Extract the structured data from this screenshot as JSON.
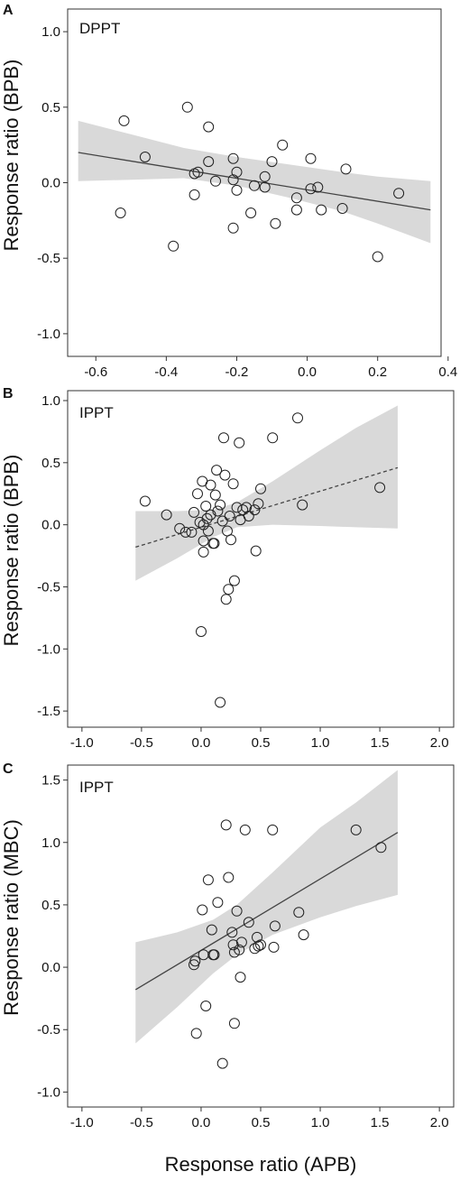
{
  "figure": {
    "xlabel": "Response ratio (APB)"
  },
  "chart_data": [
    {
      "type": "scatter",
      "panel": "A",
      "title": "DPPT",
      "ylabel": "Response ratio (BPB)",
      "xlabel": "",
      "xlim": [
        -0.68,
        0.38
      ],
      "ylim": [
        -1.15,
        1.15
      ],
      "xticks": [
        -0.6,
        -0.4,
        -0.2,
        0.0,
        0.2,
        0.4
      ],
      "xtick_labels": [
        "-0.6",
        "-0.4",
        "-0.2",
        "0.0",
        "0.2",
        "0.4"
      ],
      "yticks": [
        1.0,
        0.5,
        0.0,
        -0.5,
        -1.0
      ],
      "ytick_labels": [
        "1.0",
        "0.5",
        "0.0",
        "-0.5",
        "-1.0"
      ],
      "fit": {
        "x": [
          -0.65,
          0.35
        ],
        "y": [
          0.2,
          -0.18
        ],
        "style": "solid"
      },
      "band": {
        "x": [
          -0.65,
          -0.5,
          -0.35,
          -0.2,
          -0.05,
          0.1,
          0.2,
          0.35
        ],
        "upper": [
          0.41,
          0.32,
          0.23,
          0.17,
          0.12,
          0.07,
          0.04,
          0.01
        ],
        "lower": [
          0.01,
          0.02,
          0.03,
          -0.02,
          -0.1,
          -0.19,
          -0.27,
          -0.4
        ]
      },
      "points": [
        {
          "x": -0.52,
          "y": 0.41
        },
        {
          "x": -0.53,
          "y": -0.2
        },
        {
          "x": -0.46,
          "y": 0.17
        },
        {
          "x": -0.38,
          "y": -0.42
        },
        {
          "x": -0.34,
          "y": 0.5
        },
        {
          "x": -0.32,
          "y": 0.06
        },
        {
          "x": -0.32,
          "y": -0.08
        },
        {
          "x": -0.31,
          "y": 0.07
        },
        {
          "x": -0.28,
          "y": 0.37
        },
        {
          "x": -0.28,
          "y": 0.14
        },
        {
          "x": -0.26,
          "y": 0.01
        },
        {
          "x": -0.21,
          "y": 0.16
        },
        {
          "x": -0.21,
          "y": 0.02
        },
        {
          "x": -0.2,
          "y": 0.07
        },
        {
          "x": -0.2,
          "y": -0.05
        },
        {
          "x": -0.21,
          "y": -0.3
        },
        {
          "x": -0.16,
          "y": -0.2
        },
        {
          "x": -0.15,
          "y": -0.02
        },
        {
          "x": -0.12,
          "y": 0.04
        },
        {
          "x": -0.12,
          "y": -0.03
        },
        {
          "x": -0.1,
          "y": 0.14
        },
        {
          "x": -0.09,
          "y": -0.27
        },
        {
          "x": -0.07,
          "y": 0.25
        },
        {
          "x": -0.03,
          "y": -0.1
        },
        {
          "x": -0.03,
          "y": -0.18
        },
        {
          "x": 0.01,
          "y": 0.16
        },
        {
          "x": 0.01,
          "y": -0.04
        },
        {
          "x": 0.03,
          "y": -0.03
        },
        {
          "x": 0.04,
          "y": -0.18
        },
        {
          "x": 0.1,
          "y": -0.17
        },
        {
          "x": 0.11,
          "y": 0.09
        },
        {
          "x": 0.2,
          "y": -0.49
        },
        {
          "x": 0.26,
          "y": -0.07
        }
      ]
    },
    {
      "type": "scatter",
      "panel": "B",
      "title": "IPPT",
      "ylabel": "Response ratio (BPB)",
      "xlabel": "",
      "xlim": [
        -1.12,
        2.12
      ],
      "ylim": [
        -1.63,
        1.08
      ],
      "xticks": [
        -1.0,
        -0.5,
        0.0,
        0.5,
        1.0,
        1.5,
        2.0
      ],
      "xtick_labels": [
        "-1.0",
        "-0.5",
        "0.0",
        "0.5",
        "1.0",
        "1.5",
        "2.0"
      ],
      "yticks": [
        1.0,
        0.5,
        0.0,
        -0.5,
        -1.0,
        -1.5
      ],
      "ytick_labels": [
        "1.0",
        "0.5",
        "0.0",
        "-0.5",
        "-1.0",
        "-1.5"
      ],
      "fit": {
        "x": [
          -0.55,
          1.65
        ],
        "y": [
          -0.18,
          0.46
        ],
        "style": "dashed"
      },
      "band": {
        "x": [
          -0.55,
          -0.2,
          0.1,
          0.3,
          0.6,
          1.0,
          1.3,
          1.65
        ],
        "upper": [
          0.11,
          0.11,
          0.12,
          0.18,
          0.35,
          0.6,
          0.78,
          0.96
        ],
        "lower": [
          -0.45,
          -0.27,
          -0.1,
          -0.02,
          0.0,
          -0.01,
          -0.02,
          -0.03
        ]
      },
      "points": [
        {
          "x": -0.47,
          "y": 0.19
        },
        {
          "x": -0.29,
          "y": 0.08
        },
        {
          "x": -0.18,
          "y": -0.03
        },
        {
          "x": -0.13,
          "y": -0.06
        },
        {
          "x": -0.08,
          "y": -0.06
        },
        {
          "x": -0.06,
          "y": 0.1
        },
        {
          "x": -0.03,
          "y": 0.25
        },
        {
          "x": -0.01,
          "y": 0.02
        },
        {
          "x": 0.01,
          "y": 0.35
        },
        {
          "x": 0.02,
          "y": 0.0
        },
        {
          "x": 0.02,
          "y": -0.13
        },
        {
          "x": 0.02,
          "y": -0.22
        },
        {
          "x": 0.04,
          "y": 0.15
        },
        {
          "x": 0.05,
          "y": 0.05
        },
        {
          "x": 0.06,
          "y": -0.05
        },
        {
          "x": 0.08,
          "y": 0.32
        },
        {
          "x": 0.08,
          "y": 0.08
        },
        {
          "x": 0.1,
          "y": -0.15
        },
        {
          "x": 0.11,
          "y": -0.15
        },
        {
          "x": 0.12,
          "y": 0.24
        },
        {
          "x": 0.13,
          "y": 0.44
        },
        {
          "x": 0.14,
          "y": 0.11
        },
        {
          "x": 0.16,
          "y": 0.16
        },
        {
          "x": 0.18,
          "y": 0.03
        },
        {
          "x": 0.19,
          "y": 0.7
        },
        {
          "x": 0.2,
          "y": 0.4
        },
        {
          "x": 0.21,
          "y": -0.6
        },
        {
          "x": 0.22,
          "y": -0.05
        },
        {
          "x": 0.23,
          "y": -0.52
        },
        {
          "x": 0.24,
          "y": 0.07
        },
        {
          "x": 0.25,
          "y": -0.12
        },
        {
          "x": 0.27,
          "y": 0.33
        },
        {
          "x": 0.28,
          "y": -0.45
        },
        {
          "x": 0.3,
          "y": 0.14
        },
        {
          "x": 0.32,
          "y": 0.66
        },
        {
          "x": 0.33,
          "y": 0.04
        },
        {
          "x": 0.35,
          "y": 0.12
        },
        {
          "x": 0.38,
          "y": 0.14
        },
        {
          "x": 0.4,
          "y": 0.07
        },
        {
          "x": 0.45,
          "y": 0.12
        },
        {
          "x": 0.46,
          "y": -0.21
        },
        {
          "x": 0.48,
          "y": 0.17
        },
        {
          "x": 0.5,
          "y": 0.29
        },
        {
          "x": 0.6,
          "y": 0.7
        },
        {
          "x": 0.81,
          "y": 0.86
        },
        {
          "x": 0.85,
          "y": 0.16
        },
        {
          "x": 1.5,
          "y": 0.3
        },
        {
          "x": 0.0,
          "y": -0.86
        },
        {
          "x": 0.16,
          "y": -1.43
        }
      ]
    },
    {
      "type": "scatter",
      "panel": "C",
      "title": "IPPT",
      "ylabel": "Response ratio (MBC)",
      "xlabel": "Response ratio (APB)",
      "xlim": [
        -1.12,
        2.12
      ],
      "ylim": [
        -1.12,
        1.62
      ],
      "xticks": [
        -1.0,
        -0.5,
        0.0,
        0.5,
        1.0,
        1.5,
        2.0
      ],
      "xtick_labels": [
        "-1.0",
        "-0.5",
        "0.0",
        "0.5",
        "1.0",
        "1.5",
        "2.0"
      ],
      "yticks": [
        1.5,
        1.0,
        0.5,
        0.0,
        -0.5,
        -1.0
      ],
      "ytick_labels": [
        "1.5",
        "1.0",
        "0.5",
        "0.0",
        "-0.5",
        "-1.0"
      ],
      "fit": {
        "x": [
          -0.55,
          1.65
        ],
        "y": [
          -0.18,
          1.08
        ],
        "style": "solid"
      },
      "band": {
        "x": [
          -0.55,
          -0.2,
          0.1,
          0.3,
          0.6,
          1.0,
          1.3,
          1.65
        ],
        "upper": [
          0.2,
          0.28,
          0.38,
          0.5,
          0.76,
          1.12,
          1.32,
          1.58
        ],
        "lower": [
          -0.61,
          -0.32,
          -0.05,
          0.1,
          0.26,
          0.4,
          0.49,
          0.58
        ]
      },
      "points": [
        {
          "x": -0.06,
          "y": 0.02
        },
        {
          "x": -0.05,
          "y": 0.05
        },
        {
          "x": -0.04,
          "y": -0.53
        },
        {
          "x": 0.01,
          "y": 0.46
        },
        {
          "x": 0.02,
          "y": 0.1
        },
        {
          "x": 0.04,
          "y": -0.31
        },
        {
          "x": 0.06,
          "y": 0.7
        },
        {
          "x": 0.09,
          "y": 0.3
        },
        {
          "x": 0.1,
          "y": 0.1
        },
        {
          "x": 0.11,
          "y": 0.1
        },
        {
          "x": 0.14,
          "y": 0.52
        },
        {
          "x": 0.18,
          "y": -0.77
        },
        {
          "x": 0.21,
          "y": 1.14
        },
        {
          "x": 0.23,
          "y": 0.72
        },
        {
          "x": 0.26,
          "y": 0.28
        },
        {
          "x": 0.27,
          "y": 0.18
        },
        {
          "x": 0.28,
          "y": -0.45
        },
        {
          "x": 0.28,
          "y": 0.12
        },
        {
          "x": 0.3,
          "y": 0.45
        },
        {
          "x": 0.32,
          "y": 0.14
        },
        {
          "x": 0.33,
          "y": -0.08
        },
        {
          "x": 0.34,
          "y": 0.2
        },
        {
          "x": 0.37,
          "y": 1.1
        },
        {
          "x": 0.4,
          "y": 0.36
        },
        {
          "x": 0.45,
          "y": 0.15
        },
        {
          "x": 0.47,
          "y": 0.24
        },
        {
          "x": 0.48,
          "y": 0.17
        },
        {
          "x": 0.5,
          "y": 0.18
        },
        {
          "x": 0.6,
          "y": 1.1
        },
        {
          "x": 0.62,
          "y": 0.33
        },
        {
          "x": 0.61,
          "y": 0.16
        },
        {
          "x": 0.82,
          "y": 0.44
        },
        {
          "x": 0.86,
          "y": 0.26
        },
        {
          "x": 1.3,
          "y": 1.1
        },
        {
          "x": 1.51,
          "y": 0.96
        }
      ]
    }
  ]
}
